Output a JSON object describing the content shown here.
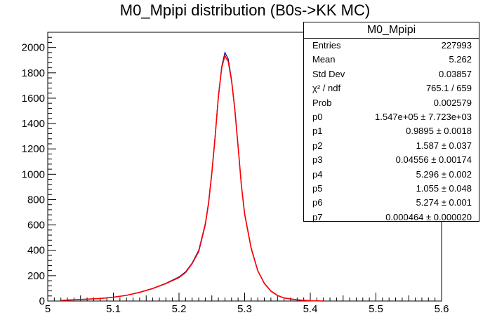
{
  "chart_data": {
    "type": "line",
    "title": "M0_Mpipi distribution (B0s->KK MC)",
    "xlabel": "",
    "ylabel": "",
    "xlim": [
      5.0,
      5.6
    ],
    "ylim": [
      0,
      2120
    ],
    "x_ticks": [
      "5",
      "5.1",
      "5.2",
      "5.3",
      "5.4",
      "5.5",
      "5.6"
    ],
    "y_ticks": [
      "0",
      "200",
      "400",
      "600",
      "800",
      "1000",
      "1200",
      "1400",
      "1600",
      "1800",
      "2000"
    ],
    "series": [
      {
        "kind": "histogram",
        "color": "#00008b",
        "x": [
          5.02,
          5.05,
          5.08,
          5.1,
          5.12,
          5.14,
          5.16,
          5.18,
          5.2,
          5.21,
          5.22,
          5.23,
          5.24,
          5.245,
          5.25,
          5.255,
          5.26,
          5.265,
          5.27,
          5.275,
          5.28,
          5.285,
          5.29,
          5.295,
          5.3,
          5.31,
          5.32,
          5.33,
          5.34,
          5.35,
          5.36,
          5.38,
          5.4,
          5.42
        ],
        "y": [
          5,
          12,
          20,
          30,
          45,
          70,
          100,
          140,
          190,
          230,
          300,
          400,
          610,
          780,
          1020,
          1300,
          1620,
          1850,
          1960,
          1910,
          1750,
          1520,
          1220,
          920,
          690,
          420,
          240,
          140,
          80,
          45,
          25,
          10,
          3,
          0
        ]
      },
      {
        "kind": "fit",
        "color": "#ff0000",
        "x": [
          5.02,
          5.05,
          5.08,
          5.1,
          5.12,
          5.14,
          5.16,
          5.18,
          5.2,
          5.21,
          5.22,
          5.23,
          5.24,
          5.245,
          5.25,
          5.255,
          5.26,
          5.265,
          5.27,
          5.275,
          5.28,
          5.285,
          5.29,
          5.295,
          5.3,
          5.31,
          5.32,
          5.33,
          5.34,
          5.35,
          5.36,
          5.38,
          5.4,
          5.42
        ],
        "y": [
          5,
          12,
          20,
          30,
          45,
          68,
          98,
          138,
          185,
          225,
          295,
          390,
          600,
          770,
          1010,
          1290,
          1610,
          1840,
          1935,
          1890,
          1740,
          1510,
          1215,
          915,
          685,
          415,
          238,
          138,
          78,
          44,
          24,
          9,
          2,
          0
        ]
      }
    ]
  },
  "stats": {
    "header": "M0_Mpipi",
    "rows": [
      {
        "label": "Entries",
        "value": "227993"
      },
      {
        "label": "Mean",
        "value": "5.262"
      },
      {
        "label": "Std Dev",
        "value": "0.03857"
      },
      {
        "label": "χ² / ndf",
        "value": "765.1 / 659"
      },
      {
        "label": "Prob",
        "value": "0.002579"
      },
      {
        "label": "p0",
        "value": "1.547e+05 ± 7.723e+03"
      },
      {
        "label": "p1",
        "value": "0.9895 ± 0.0018"
      },
      {
        "label": "p2",
        "value": "1.587 ± 0.037"
      },
      {
        "label": "p3",
        "value": "0.04556 ± 0.00174"
      },
      {
        "label": "p4",
        "value": "5.296 ± 0.002"
      },
      {
        "label": "p5",
        "value": "1.055 ± 0.048"
      },
      {
        "label": "p6",
        "value": "5.274 ± 0.001"
      },
      {
        "label": "p7",
        "value": "0.000464 ± 0.000020"
      }
    ]
  }
}
